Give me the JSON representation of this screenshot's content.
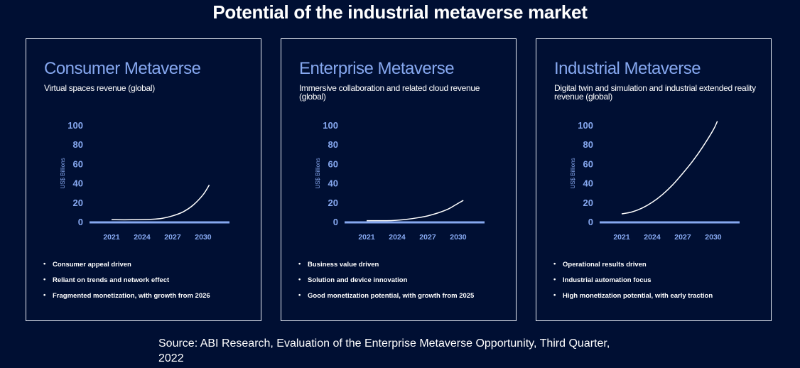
{
  "title": "Potential of the industrial metaverse market",
  "panels": [
    {
      "title": "Consumer Metaverse",
      "subtitle": "Virtual spaces revenue (global)",
      "bullets": [
        "Consumer appeal driven",
        "Reliant on trends and network effect",
        "Fragmented monetization, with growth from 2026"
      ]
    },
    {
      "title": "Enterprise Metaverse",
      "subtitle": "Immersive collaboration and related cloud revenue (global)",
      "bullets": [
        "Business value driven",
        "Solution and device innovation",
        "Good monetization potential, with growth from 2025"
      ]
    },
    {
      "title": "Industrial Metaverse",
      "subtitle": "Digital twin and simulation and industrial extended reality revenue (global)",
      "bullets": [
        "Operational results driven",
        "Industrial automation focus",
        "High monetization potential, with early traction"
      ]
    }
  ],
  "chart_data": [
    {
      "type": "line",
      "ylabel": "US$ Billions",
      "yticks": [
        0,
        20,
        40,
        60,
        80,
        100
      ],
      "xticks": [
        "2021",
        "2024",
        "2027",
        "2030"
      ],
      "ylim": [
        0,
        100
      ],
      "grid": false,
      "x": [
        2021,
        2023,
        2025,
        2026,
        2027,
        2028,
        2029,
        2030,
        2030.6
      ],
      "y": [
        2,
        2,
        2.5,
        3.5,
        6,
        10,
        17,
        28,
        38
      ]
    },
    {
      "type": "line",
      "ylabel": "US$ Billions",
      "yticks": [
        0,
        20,
        40,
        60,
        80,
        100
      ],
      "xticks": [
        "2021",
        "2024",
        "2027",
        "2030"
      ],
      "ylim": [
        0,
        100
      ],
      "grid": false,
      "x": [
        2021,
        2023,
        2024,
        2025,
        2026,
        2027,
        2028,
        2029,
        2030,
        2030.5
      ],
      "y": [
        1,
        1,
        1.5,
        2.5,
        4,
        6,
        9,
        13,
        19,
        22
      ]
    },
    {
      "type": "line",
      "ylabel": "US$ Billions",
      "yticks": [
        0,
        20,
        40,
        60,
        80,
        100
      ],
      "xticks": [
        "2021",
        "2024",
        "2027",
        "2030"
      ],
      "ylim": [
        0,
        100
      ],
      "grid": false,
      "x": [
        2021,
        2022,
        2023,
        2024,
        2025,
        2026,
        2027,
        2028,
        2029,
        2030,
        2030.4
      ],
      "y": [
        8,
        10,
        14,
        20,
        28,
        38,
        50,
        63,
        78,
        95,
        104
      ]
    }
  ],
  "colors": {
    "background": "#000f33",
    "accent": "#86a8f0",
    "line": "#ffffff"
  },
  "source": "Source: ABI Research, Evaluation of the Enterprise Metaverse Opportunity, Third Quarter, 2022"
}
